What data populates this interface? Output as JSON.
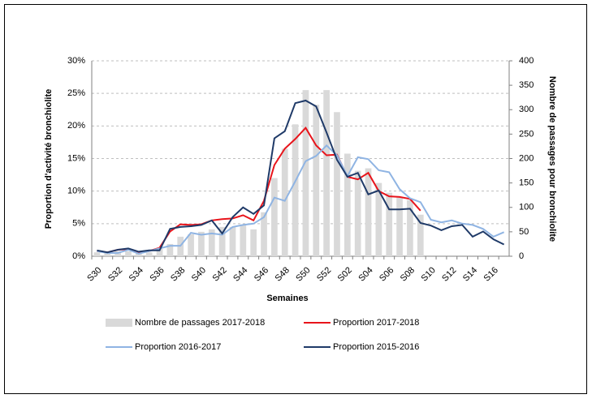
{
  "chart_data": {
    "type": "bar",
    "x_label": "Semaines",
    "y_label": "Proportion d'activité bronchiolite",
    "y2_label": "Nombre de passages pour bronchiolite",
    "categories": [
      "S30",
      null,
      "S32",
      null,
      "S34",
      null,
      "S36",
      null,
      "S38",
      null,
      "S40",
      null,
      "S42",
      null,
      "S44",
      null,
      "S46",
      null,
      "S48",
      null,
      "S50",
      null,
      "S52",
      null,
      "S02",
      null,
      "S04",
      null,
      "S06",
      null,
      "S08",
      null,
      "S10",
      null,
      "S12",
      null,
      "S14",
      null,
      "S16",
      null
    ],
    "ylim": [
      0,
      30
    ],
    "yticks": [
      {
        "value": 0,
        "label": "0%"
      },
      {
        "value": 5,
        "label": "5%"
      },
      {
        "value": 10,
        "label": "10%"
      },
      {
        "value": 15,
        "label": "15%"
      },
      {
        "value": 20,
        "label": "20%"
      },
      {
        "value": 25,
        "label": "25%"
      },
      {
        "value": 30,
        "label": "30%"
      }
    ],
    "y2lim": [
      0,
      400
    ],
    "y2ticks": [
      0,
      50,
      100,
      150,
      200,
      250,
      300,
      350,
      400
    ],
    "grid": true,
    "series": [
      {
        "name": "Nombre de passages 2017-2018",
        "type": "bar",
        "axis": "y2",
        "color": "#d9d9d9",
        "values": [
          8,
          6,
          10,
          10,
          6,
          8,
          15,
          25,
          40,
          45,
          50,
          55,
          60,
          60,
          65,
          55,
          90,
          160,
          220,
          270,
          340,
          310,
          340,
          295,
          210,
          175,
          180,
          150,
          130,
          120,
          115,
          85,
          null,
          null,
          null,
          null,
          null,
          null,
          null,
          null
        ]
      },
      {
        "name": "Proportion 2017-2018",
        "type": "line",
        "color": "#e8141b",
        "values": [
          0.8,
          0.6,
          1.0,
          1.1,
          0.6,
          0.8,
          1.3,
          3.8,
          4.9,
          4.8,
          4.9,
          5.5,
          5.7,
          5.8,
          6.3,
          5.5,
          8.5,
          14.0,
          16.5,
          18.0,
          19.7,
          17.0,
          15.5,
          15.6,
          12.2,
          11.8,
          12.8,
          10.0,
          9.2,
          9.1,
          8.8,
          7.0,
          null,
          null,
          null,
          null,
          null,
          null,
          null,
          null
        ]
      },
      {
        "name": "Proportion 2016-2017",
        "type": "line",
        "color": "#8fb4e3",
        "values": [
          0.8,
          0.5,
          0.5,
          1.0,
          0.4,
          0.8,
          1.2,
          1.6,
          1.6,
          3.6,
          3.3,
          3.5,
          3.3,
          4.5,
          4.8,
          5.0,
          6.0,
          9.0,
          8.5,
          11.5,
          14.6,
          15.4,
          17.0,
          15.5,
          12.3,
          15.2,
          14.9,
          13.2,
          12.9,
          10.3,
          8.9,
          8.3,
          5.6,
          5.2,
          5.5,
          5.0,
          4.8,
          4.2,
          3.0,
          3.7
        ]
      },
      {
        "name": "Proportion 2015-2016",
        "type": "line",
        "color": "#1f3a68",
        "values": [
          0.9,
          0.6,
          1.0,
          1.2,
          0.7,
          0.9,
          0.9,
          4.2,
          4.5,
          4.6,
          4.8,
          5.5,
          3.5,
          6.0,
          7.5,
          6.5,
          7.8,
          18.1,
          19.2,
          23.5,
          23.9,
          23.0,
          19.0,
          14.8,
          12.2,
          12.8,
          9.5,
          10.1,
          7.2,
          7.2,
          7.3,
          5.1,
          4.7,
          4.0,
          4.6,
          4.8,
          3.0,
          3.8,
          2.6,
          1.8
        ]
      }
    ]
  }
}
